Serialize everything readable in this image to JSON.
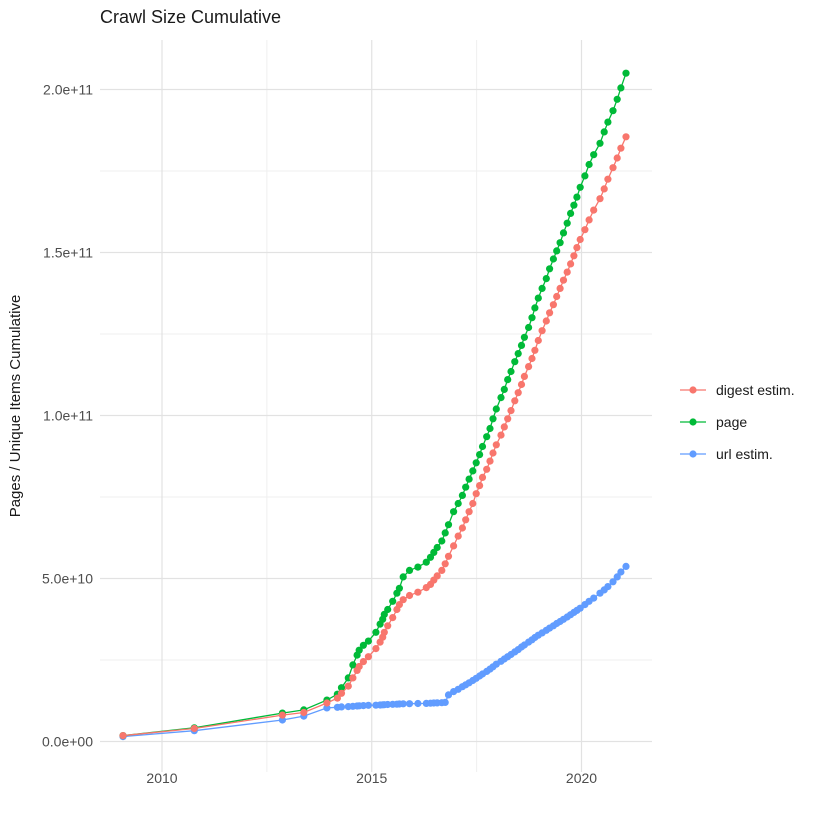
{
  "chart_data": {
    "type": "line",
    "title": "Crawl Size Cumulative",
    "xlabel": "",
    "ylabel": "Pages / Unique Items Cumulative",
    "x_ticks": [
      2010,
      2015,
      2020
    ],
    "x_minor_gridlines": [
      2012.5,
      2017.5
    ],
    "y_tick_labels": [
      "0.0e+00",
      "5.0e+10",
      "1.0e+11",
      "1.5e+11",
      "2.0e+11"
    ],
    "y_tick_values_billions": [
      0,
      50,
      100,
      150,
      200
    ],
    "y_minor_gridlines_billions": [
      25,
      75,
      125,
      175
    ],
    "xlim": [
      2008.5,
      2021.7
    ],
    "ylim_billions": [
      0,
      216
    ],
    "unit": "billions (1e9) of pages / unique items",
    "grid": true,
    "legend_position": "right",
    "x_years": [
      2009.07,
      2010.77,
      2012.87,
      2013.38,
      2013.93,
      2014.18,
      2014.28,
      2014.44,
      2014.55,
      2014.65,
      2014.7,
      2014.8,
      2014.92,
      2015.1,
      2015.2,
      2015.26,
      2015.3,
      2015.38,
      2015.5,
      2015.6,
      2015.66,
      2015.75,
      2015.9,
      2016.1,
      2016.3,
      2016.4,
      2016.48,
      2016.56,
      2016.67,
      2016.75,
      2016.83,
      2016.95,
      2017.06,
      2017.16,
      2017.24,
      2017.32,
      2017.41,
      2017.49,
      2017.57,
      2017.64,
      2017.74,
      2017.82,
      2017.89,
      2017.97,
      2018.08,
      2018.16,
      2018.24,
      2018.32,
      2018.41,
      2018.49,
      2018.57,
      2018.64,
      2018.74,
      2018.82,
      2018.89,
      2018.97,
      2019.06,
      2019.16,
      2019.24,
      2019.33,
      2019.41,
      2019.49,
      2019.57,
      2019.66,
      2019.74,
      2019.82,
      2019.89,
      2019.97,
      2020.08,
      2020.18,
      2020.29,
      2020.44,
      2020.54,
      2020.63,
      2020.75,
      2020.85,
      2020.94,
      2021.06
    ],
    "series": [
      {
        "name": "digest estim.",
        "color": "#F8766D",
        "values_billions": [
          1.8,
          4.0,
          8.1,
          8.9,
          11.8,
          13.3,
          14.8,
          17.0,
          19.5,
          21.8,
          23.0,
          24.5,
          26.0,
          28.5,
          30.5,
          32.0,
          33.5,
          35.5,
          38.0,
          40.5,
          42.0,
          43.5,
          44.8,
          45.8,
          47.2,
          48.2,
          49.5,
          50.8,
          52.5,
          54.5,
          56.8,
          60.0,
          63.0,
          65.5,
          68.0,
          70.5,
          73.0,
          76.0,
          78.5,
          81.0,
          83.5,
          86.0,
          88.5,
          91.0,
          94.0,
          96.5,
          99.0,
          101.5,
          104.5,
          107.0,
          109.5,
          112.0,
          115.0,
          117.5,
          120.0,
          123.0,
          126.0,
          129.0,
          131.5,
          134.0,
          136.5,
          139.0,
          141.5,
          144.0,
          146.5,
          149.0,
          151.5,
          154.0,
          157.0,
          160.0,
          163.0,
          166.5,
          169.5,
          172.5,
          176.0,
          179.0,
          182.0,
          185.5
        ]
      },
      {
        "name": "page",
        "color": "#00BA38",
        "values_billions": [
          1.8,
          4.2,
          8.7,
          9.7,
          12.7,
          14.5,
          16.5,
          19.5,
          23.5,
          26.5,
          28.0,
          29.5,
          30.8,
          33.5,
          36.0,
          37.5,
          39.0,
          40.5,
          43.0,
          45.5,
          47.0,
          50.5,
          52.5,
          53.5,
          55.0,
          56.5,
          58.0,
          59.5,
          61.5,
          64.0,
          66.5,
          70.5,
          73.0,
          75.5,
          78.0,
          80.5,
          83.0,
          85.5,
          88.0,
          90.5,
          93.5,
          96.0,
          99.0,
          102.0,
          105.5,
          108.0,
          111.0,
          113.5,
          116.5,
          119.0,
          121.5,
          124.0,
          127.0,
          130.0,
          133.0,
          136.0,
          139.0,
          142.0,
          145.0,
          148.0,
          150.5,
          153.0,
          156.0,
          159.0,
          162.0,
          164.5,
          167.0,
          170.0,
          173.5,
          177.0,
          180.0,
          183.5,
          187.0,
          190.0,
          193.5,
          197.0,
          200.5,
          205.0
        ]
      },
      {
        "name": "url estim.",
        "color": "#619CFF",
        "values_billions": [
          1.5,
          3.3,
          6.6,
          7.8,
          10.3,
          10.5,
          10.6,
          10.7,
          10.8,
          10.9,
          10.95,
          11.0,
          11.1,
          11.15,
          11.2,
          11.25,
          11.3,
          11.35,
          11.4,
          11.45,
          11.5,
          11.55,
          11.6,
          11.65,
          11.7,
          11.75,
          11.8,
          11.85,
          11.9,
          12.0,
          14.3,
          15.3,
          16.0,
          16.8,
          17.4,
          18.0,
          18.7,
          19.4,
          20.1,
          20.7,
          21.5,
          22.2,
          22.9,
          23.7,
          24.6,
          25.3,
          26.0,
          26.7,
          27.5,
          28.2,
          29.0,
          29.6,
          30.5,
          31.2,
          31.9,
          32.6,
          33.3,
          34.1,
          34.8,
          35.5,
          36.2,
          36.8,
          37.5,
          38.2,
          38.9,
          39.6,
          40.2,
          40.9,
          42.0,
          43.0,
          44.0,
          45.5,
          46.5,
          47.5,
          49.0,
          50.5,
          52.0,
          53.7
        ]
      }
    ]
  },
  "colors": {
    "grid_major": "#e2e2e2",
    "grid_minor": "#efefef",
    "tick_text": "#4d4d4d",
    "title_text": "#1a1a1a"
  }
}
